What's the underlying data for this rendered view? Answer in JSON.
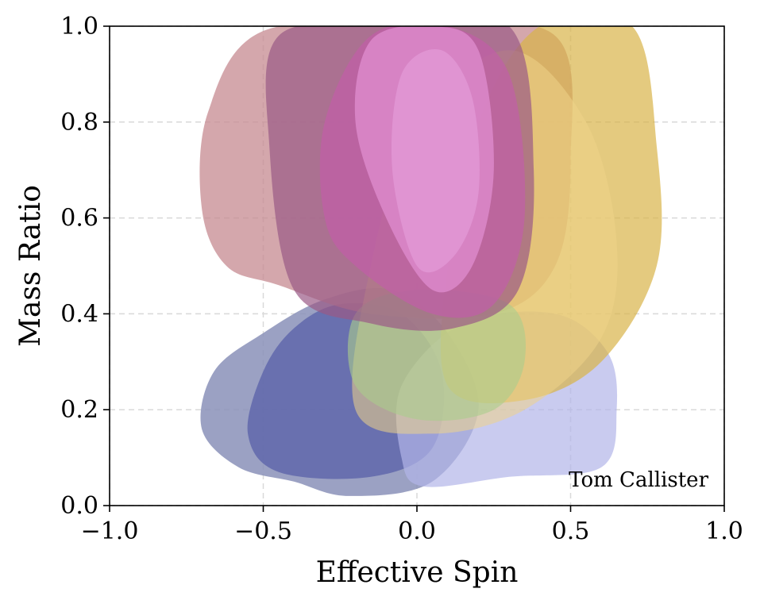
{
  "chart_data": {
    "type": "area",
    "xlabel": "Effective Spin",
    "ylabel": "Mass Ratio",
    "xlim": [
      -1.0,
      1.0
    ],
    "ylim": [
      0.0,
      1.0
    ],
    "xticks": [
      -1.0,
      -0.5,
      0.0,
      0.5,
      1.0
    ],
    "xtick_labels": [
      "−1.0",
      "−0.5",
      "0.0",
      "0.5",
      "1.0"
    ],
    "yticks": [
      0.0,
      0.2,
      0.4,
      0.6,
      0.8,
      1.0
    ],
    "ytick_labels": [
      "0.0",
      "0.2",
      "0.4",
      "0.6",
      "0.8",
      "1.0"
    ],
    "grid": true,
    "annotation": "Tom Callister",
    "annotation_position": "bottom-right",
    "series": [
      {
        "color": "#8a90b8",
        "opacity": 0.85,
        "points": [
          [
            -0.22,
            0.02
          ],
          [
            0.05,
            0.05
          ],
          [
            0.2,
            0.2
          ],
          [
            0.1,
            0.36
          ],
          [
            -0.08,
            0.45
          ],
          [
            -0.3,
            0.43
          ],
          [
            -0.5,
            0.36
          ],
          [
            -0.66,
            0.28
          ],
          [
            -0.7,
            0.16
          ],
          [
            -0.58,
            0.08
          ],
          [
            -0.4,
            0.05
          ]
        ]
      },
      {
        "color": "#5860a8",
        "opacity": 0.75,
        "points": [
          [
            -0.45,
            0.07
          ],
          [
            -0.15,
            0.06
          ],
          [
            0.05,
            0.12
          ],
          [
            0.08,
            0.28
          ],
          [
            -0.05,
            0.4
          ],
          [
            -0.25,
            0.42
          ],
          [
            -0.4,
            0.37
          ],
          [
            -0.5,
            0.28
          ],
          [
            -0.55,
            0.15
          ]
        ]
      },
      {
        "color": "#b2b5e8",
        "opacity": 0.7,
        "points": [
          [
            0.02,
            0.04
          ],
          [
            0.3,
            0.06
          ],
          [
            0.6,
            0.08
          ],
          [
            0.65,
            0.2
          ],
          [
            0.62,
            0.32
          ],
          [
            0.45,
            0.4
          ],
          [
            0.15,
            0.38
          ],
          [
            -0.05,
            0.25
          ],
          [
            -0.05,
            0.1
          ]
        ]
      },
      {
        "color": "#c68a90",
        "opacity": 0.75,
        "points": [
          [
            -0.45,
            0.46
          ],
          [
            -0.15,
            0.4
          ],
          [
            0.25,
            0.4
          ],
          [
            0.45,
            0.5
          ],
          [
            0.5,
            0.72
          ],
          [
            0.45,
            0.98
          ],
          [
            0.0,
            1.0
          ],
          [
            -0.5,
            0.99
          ],
          [
            -0.68,
            0.82
          ],
          [
            -0.7,
            0.62
          ],
          [
            -0.62,
            0.5
          ]
        ]
      },
      {
        "color": "#d8b448",
        "opacity": 0.7,
        "points": [
          [
            0.1,
            0.25
          ],
          [
            0.35,
            0.22
          ],
          [
            0.6,
            0.3
          ],
          [
            0.78,
            0.5
          ],
          [
            0.78,
            0.75
          ],
          [
            0.7,
            1.0
          ],
          [
            0.4,
            1.0
          ],
          [
            0.2,
            0.8
          ],
          [
            0.1,
            0.5
          ]
        ]
      },
      {
        "color": "#eed488",
        "opacity": 0.55,
        "points": [
          [
            -0.2,
            0.2
          ],
          [
            0.05,
            0.15
          ],
          [
            0.35,
            0.2
          ],
          [
            0.6,
            0.35
          ],
          [
            0.65,
            0.55
          ],
          [
            0.55,
            0.8
          ],
          [
            0.3,
            0.95
          ],
          [
            0.0,
            0.8
          ],
          [
            -0.15,
            0.5
          ]
        ]
      },
      {
        "color": "#aacd8c",
        "opacity": 0.6,
        "points": [
          [
            -0.2,
            0.25
          ],
          [
            0.0,
            0.18
          ],
          [
            0.25,
            0.2
          ],
          [
            0.35,
            0.3
          ],
          [
            0.3,
            0.42
          ],
          [
            0.0,
            0.45
          ],
          [
            -0.2,
            0.4
          ]
        ]
      },
      {
        "color": "#9a5a86",
        "opacity": 0.7,
        "points": [
          [
            -0.4,
            0.45
          ],
          [
            -0.15,
            0.38
          ],
          [
            0.12,
            0.37
          ],
          [
            0.33,
            0.45
          ],
          [
            0.38,
            0.7
          ],
          [
            0.3,
            1.0
          ],
          [
            -0.1,
            1.0
          ],
          [
            -0.45,
            0.98
          ],
          [
            -0.48,
            0.75
          ]
        ]
      },
      {
        "color": "#c25ea8",
        "opacity": 0.7,
        "points": [
          [
            -0.2,
            0.5
          ],
          [
            0.05,
            0.4
          ],
          [
            0.25,
            0.42
          ],
          [
            0.35,
            0.6
          ],
          [
            0.3,
            0.9
          ],
          [
            0.1,
            1.0
          ],
          [
            -0.15,
            0.98
          ],
          [
            -0.3,
            0.8
          ],
          [
            -0.3,
            0.6
          ]
        ]
      },
      {
        "color": "#e08ed0",
        "opacity": 0.75,
        "points": [
          [
            -0.1,
            0.6
          ],
          [
            0.05,
            0.45
          ],
          [
            0.18,
            0.5
          ],
          [
            0.25,
            0.7
          ],
          [
            0.2,
            0.95
          ],
          [
            0.05,
            1.0
          ],
          [
            -0.15,
            0.97
          ],
          [
            -0.2,
            0.8
          ]
        ]
      },
      {
        "color": "#e6a0dc",
        "opacity": 0.6,
        "points": [
          [
            0.0,
            0.5
          ],
          [
            0.12,
            0.52
          ],
          [
            0.2,
            0.65
          ],
          [
            0.18,
            0.85
          ],
          [
            0.08,
            0.95
          ],
          [
            -0.05,
            0.9
          ],
          [
            -0.08,
            0.7
          ]
        ]
      }
    ]
  }
}
